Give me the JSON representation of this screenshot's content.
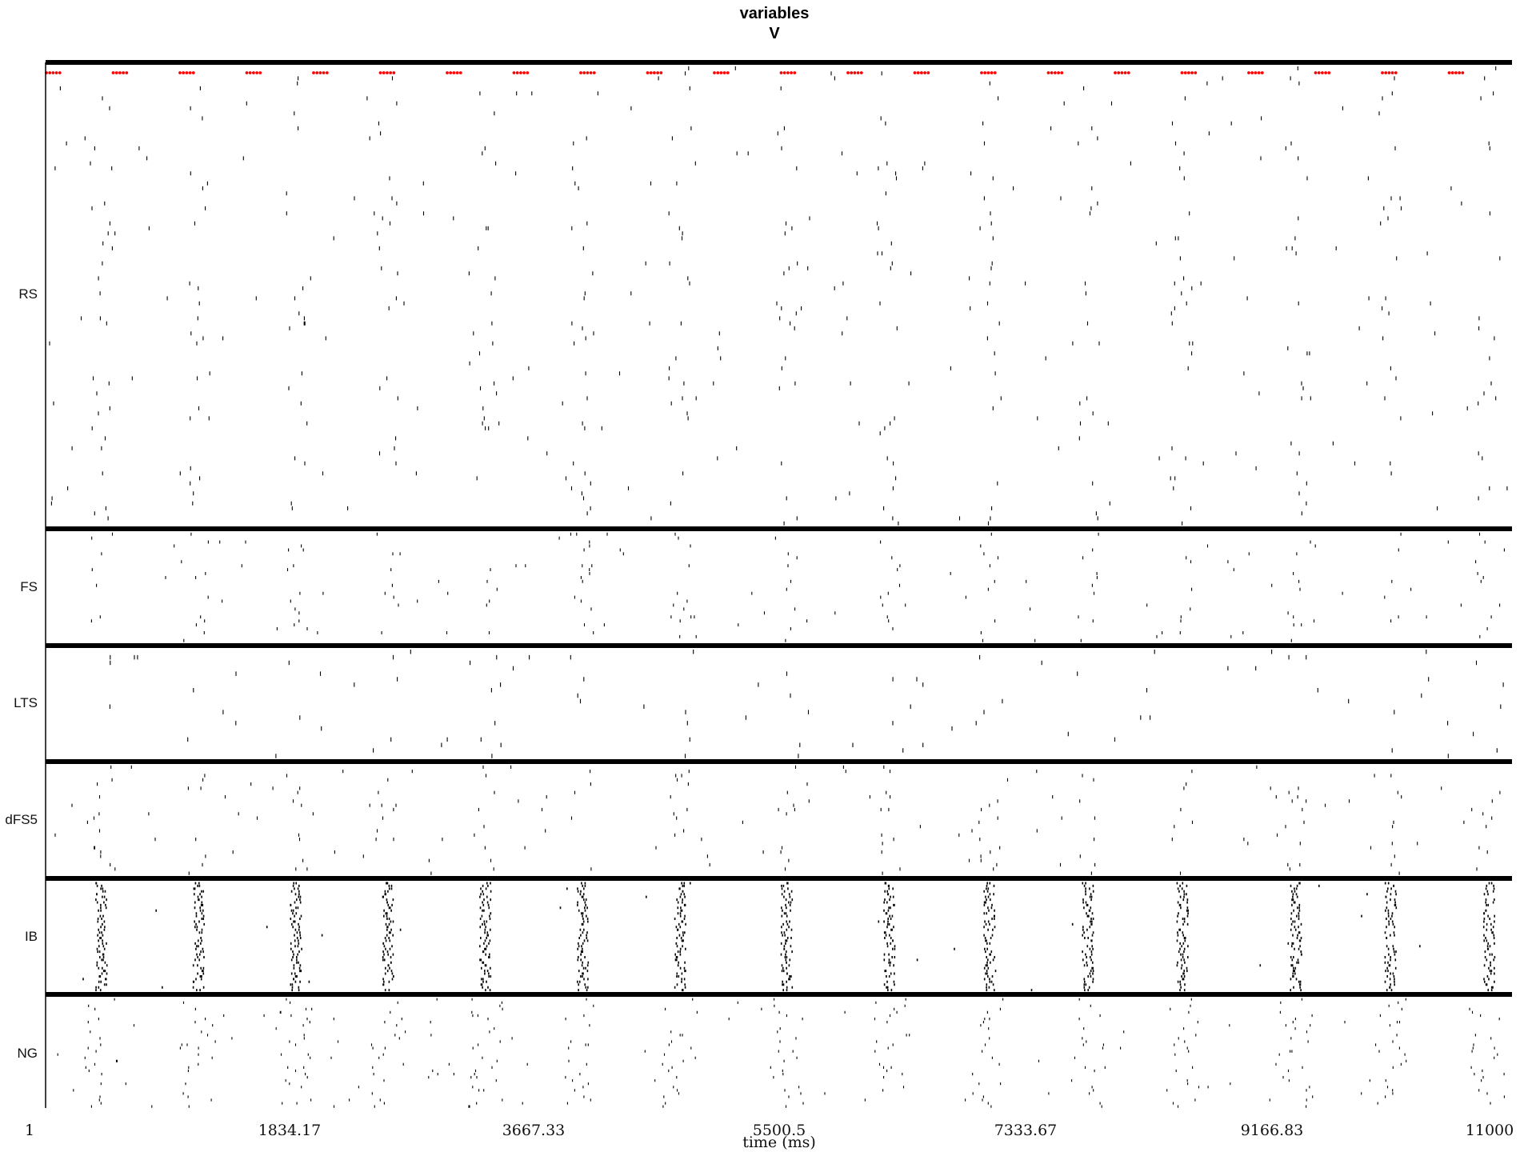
{
  "chart_data": {
    "type": "raster",
    "title": "variables",
    "subtitle": "V",
    "xlabel": "time (ms)",
    "xlim": [
      1,
      11000
    ],
    "xticks": [
      "1",
      "1834.17",
      "3667.33",
      "5500.5",
      "7333.67",
      "9166.83",
      "11000"
    ],
    "xtick_values": [
      1,
      1834.17,
      3667.33,
      5500.5,
      7333.67,
      9166.83,
      11000
    ],
    "burst_times": [
      420,
      1150,
      1880,
      2570,
      3300,
      4030,
      4760,
      5560,
      6330,
      7080,
      7820,
      8530,
      9380,
      10090,
      10830
    ],
    "marker_color": "#ff0000",
    "spike_color": "#000000",
    "separator_color": "#000000",
    "groups": [
      {
        "name": "RS"
      },
      {
        "name": "FS"
      },
      {
        "name": "LTS"
      },
      {
        "name": "dFS5"
      },
      {
        "name": "IB"
      },
      {
        "name": "NG"
      }
    ]
  }
}
